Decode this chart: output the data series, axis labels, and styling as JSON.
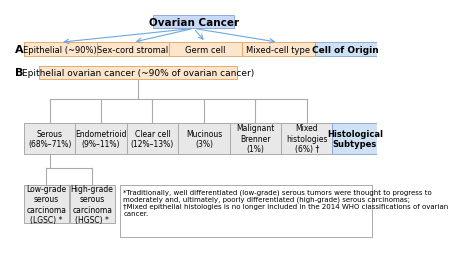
{
  "bg_color": "#ffffff",
  "title": "Ovarian Cancer",
  "title_box_color": "#c9daf8",
  "title_box_edge": "#8eaadb",
  "row_A_label": "A",
  "row_A_cells": [
    "Epithelial (~90%)",
    "Sex-cord stromal",
    "Germ cell",
    "Mixed-cell type"
  ],
  "row_A_last_cell": "Cell of Origin",
  "row_A_cell_color": "#fce5cd",
  "row_A_cell_edge": "#e6a96a",
  "row_A_last_color": "#cfe2f3",
  "row_A_last_edge": "#8eaadb",
  "row_B_label": "B",
  "epi_box_text": "Epithelial ovarian cancer (~90% of ovarian cancer)",
  "epi_box_color": "#fce5cd",
  "epi_box_edge": "#e6a96a",
  "histo_cells": [
    "Serous\n(68%–71%)",
    "Endometrioid\n(9%–11%)",
    "Clear cell\n(12%–13%)",
    "Mucinous\n(3%)",
    "Malignant\nBrenner\n(1%)",
    "Mixed\nhistologies\n(6%) †"
  ],
  "histo_last": "Histological\nSubtypes",
  "histo_cell_color": "#e8e8e8",
  "histo_cell_edge": "#aaaaaa",
  "histo_last_color": "#cfe2f3",
  "histo_last_edge": "#8eaadb",
  "sub_cells": [
    "Low-grade\nserous\ncarcinoma\n(LGSC) *",
    "High-grade\nserous\ncarcinoma\n(HGSC) *"
  ],
  "sub_cell_color": "#e8e8e8",
  "sub_cell_edge": "#aaaaaa",
  "footnote": "*Traditionally, well differentiated (low-grade) serous tumors were thought to progress to\nmoderately and, ultimately, poorly differentiated (high-grade) serous carcinomas;\n†Mixed epithelial histologies is no longer included in the 2014 WHO classifications of ovarian\ncancer.",
  "footnote_box_edge": "#aaaaaa",
  "footnote_box_color": "#ffffff",
  "arrow_color": "#6fa8dc",
  "line_color": "#6fa8dc",
  "line_color_b": "#aaaaaa"
}
